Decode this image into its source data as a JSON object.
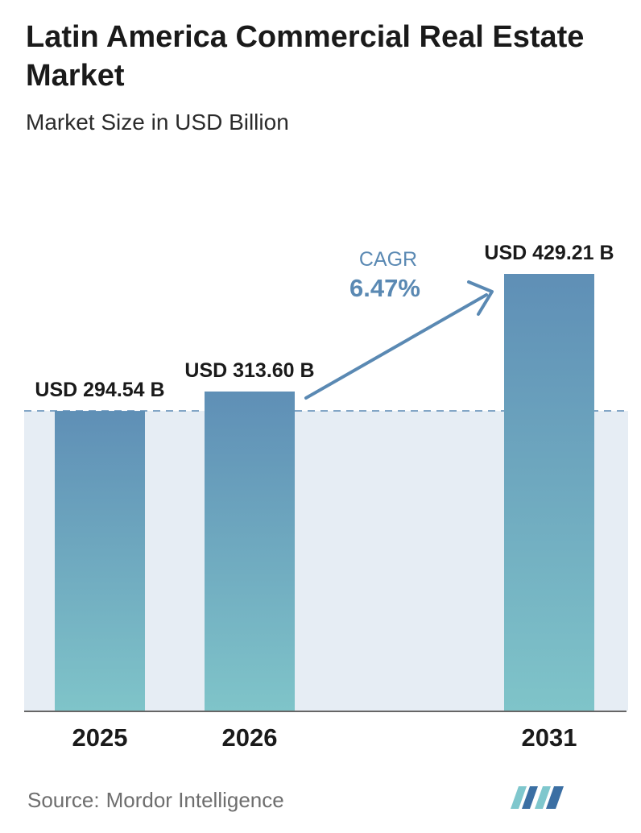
{
  "title": "Latin America Commercial Real Estate Market",
  "subtitle": "Market Size in USD Billion",
  "source": {
    "label": "Source:",
    "name": "Mordor Intelligence"
  },
  "colors": {
    "bar_top": "#5f8fb6",
    "bar_bottom": "#7fc4c9",
    "band": "#e6edf4",
    "reference_line": "#5a89b3",
    "cagr_arrow": "#5a89b3",
    "cagr_text": "#5a89b3",
    "axis": "#333333",
    "logo_light": "#7fc7cd",
    "logo_dark": "#3b6fa3"
  },
  "chart_data": {
    "type": "bar",
    "categories": [
      "2025",
      "2026",
      "2031"
    ],
    "values": [
      294.54,
      313.6,
      429.21
    ],
    "value_labels": [
      "USD 294.54 B",
      "USD 313.60 B",
      "USD 429.21 B"
    ],
    "unit": "USD Billion",
    "ylim": [
      0,
      429.21
    ],
    "reference_line": 294.54,
    "grid": false,
    "legend": "none",
    "annotation": {
      "label": "CAGR",
      "value": "6.47%"
    }
  }
}
